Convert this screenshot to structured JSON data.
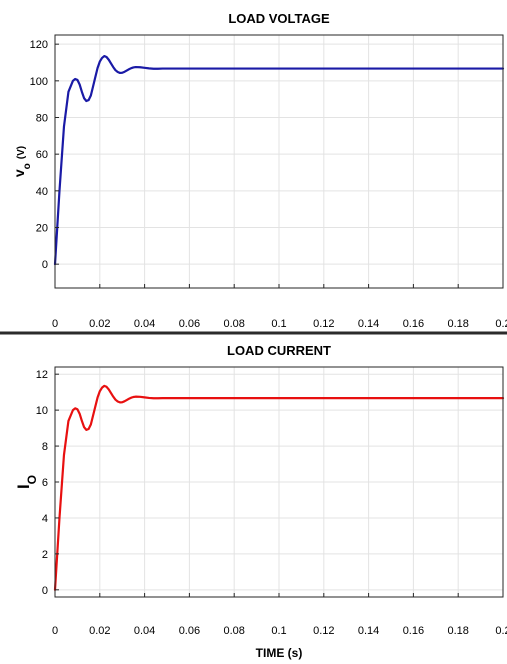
{
  "chart_data": [
    {
      "type": "line",
      "title": "LOAD VOLTAGE",
      "ylabel": "vo (V)",
      "ylabel_main": "v",
      "ylabel_sub": "o",
      "ylabel_unit": "(V)",
      "xlabel": "",
      "xlim": [
        0,
        0.2
      ],
      "ylim": [
        -13,
        125
      ],
      "xticks": [
        0,
        0.02,
        0.04,
        0.06,
        0.08,
        0.1,
        0.12,
        0.14,
        0.16,
        0.18,
        0.2
      ],
      "xticklabels": [
        "0",
        "0.02",
        "0.04",
        "0.06",
        "0.08",
        "0.1",
        "0.12",
        "0.14",
        "0.16",
        "0.18",
        "0.2"
      ],
      "yticks": [
        0,
        20,
        40,
        60,
        80,
        100,
        120
      ],
      "yticklabels": [
        "0",
        "20",
        "40",
        "60",
        "80",
        "100",
        "120"
      ],
      "grid": true,
      "color": "#1a1aa6",
      "series": [
        {
          "x": [
            0,
            0.002,
            0.004,
            0.006,
            0.008,
            0.009,
            0.01,
            0.011,
            0.012,
            0.013,
            0.014,
            0.015,
            0.016,
            0.017,
            0.018,
            0.019,
            0.02,
            0.021,
            0.022,
            0.023,
            0.024,
            0.025,
            0.026,
            0.027,
            0.028,
            0.029,
            0.03,
            0.031,
            0.032,
            0.033,
            0.034,
            0.035,
            0.036,
            0.038,
            0.04,
            0.042,
            0.044,
            0.046,
            0.048,
            0.05,
            0.055,
            0.06,
            0.07,
            0.08,
            0.09,
            0.1,
            0.11,
            0.12,
            0.13,
            0.14,
            0.15,
            0.16,
            0.17,
            0.18,
            0.19,
            0.2
          ],
          "y": [
            0,
            40,
            75,
            94,
            100,
            101,
            100.5,
            98,
            94,
            90.5,
            89,
            89.5,
            92,
            97,
            102,
            107,
            110.5,
            112.5,
            113.5,
            113,
            111.5,
            109.5,
            107.5,
            105.8,
            104.8,
            104.3,
            104.4,
            104.9,
            105.6,
            106.3,
            106.9,
            107.3,
            107.5,
            107.4,
            107.1,
            106.8,
            106.6,
            106.6,
            106.7,
            106.7,
            106.7,
            106.7,
            106.7,
            106.7,
            106.7,
            106.7,
            106.7,
            106.7,
            106.7,
            106.7,
            106.7,
            106.7,
            106.7,
            106.7,
            106.7,
            106.7
          ]
        }
      ]
    },
    {
      "type": "line",
      "title": "LOAD CURRENT",
      "ylabel": "Io",
      "ylabel_main": "I",
      "ylabel_sub": "O",
      "ylabel_unit": "",
      "xlabel": "TIME (s)",
      "xlim": [
        0,
        0.2
      ],
      "ylim": [
        -0.4,
        12.4
      ],
      "xticks": [
        0,
        0.02,
        0.04,
        0.06,
        0.08,
        0.1,
        0.12,
        0.14,
        0.16,
        0.18,
        0.2
      ],
      "xticklabels": [
        "0",
        "0.02",
        "0.04",
        "0.06",
        "0.08",
        "0.1",
        "0.12",
        "0.14",
        "0.16",
        "0.18",
        "0.2"
      ],
      "yticks": [
        0,
        2,
        4,
        6,
        8,
        10,
        12
      ],
      "yticklabels": [
        "0",
        "2",
        "4",
        "6",
        "8",
        "10",
        "12"
      ],
      "grid": true,
      "color": "#e81010",
      "series": [
        {
          "x": [
            0,
            0.002,
            0.004,
            0.006,
            0.008,
            0.009,
            0.01,
            0.011,
            0.012,
            0.013,
            0.014,
            0.015,
            0.016,
            0.017,
            0.018,
            0.019,
            0.02,
            0.021,
            0.022,
            0.023,
            0.024,
            0.025,
            0.026,
            0.027,
            0.028,
            0.029,
            0.03,
            0.031,
            0.032,
            0.033,
            0.034,
            0.035,
            0.036,
            0.038,
            0.04,
            0.042,
            0.044,
            0.046,
            0.048,
            0.05,
            0.055,
            0.06,
            0.07,
            0.08,
            0.09,
            0.1,
            0.11,
            0.12,
            0.13,
            0.14,
            0.15,
            0.16,
            0.17,
            0.18,
            0.19,
            0.2
          ],
          "y": [
            0,
            4.0,
            7.5,
            9.4,
            10.0,
            10.1,
            10.05,
            9.8,
            9.4,
            9.05,
            8.9,
            8.95,
            9.2,
            9.7,
            10.2,
            10.7,
            11.05,
            11.25,
            11.35,
            11.3,
            11.15,
            10.95,
            10.75,
            10.58,
            10.48,
            10.43,
            10.44,
            10.49,
            10.56,
            10.63,
            10.69,
            10.73,
            10.75,
            10.74,
            10.71,
            10.68,
            10.66,
            10.66,
            10.67,
            10.67,
            10.67,
            10.67,
            10.67,
            10.67,
            10.67,
            10.67,
            10.67,
            10.67,
            10.67,
            10.67,
            10.67,
            10.67,
            10.67,
            10.67,
            10.67,
            10.67
          ]
        }
      ]
    }
  ]
}
